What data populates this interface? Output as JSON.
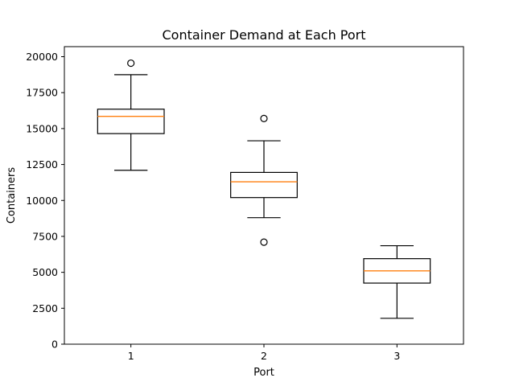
{
  "chart_data": {
    "type": "box",
    "title": "Container Demand at Each Port",
    "xlabel": "Port",
    "ylabel": "Containers",
    "categories": [
      "1",
      "2",
      "3"
    ],
    "ylim": [
      0,
      20700
    ],
    "yticks": [
      0,
      2500,
      5000,
      7500,
      10000,
      12500,
      15000,
      17500,
      20000
    ],
    "grid": false,
    "colors": {
      "box": "#000000",
      "median": "#ff7f0e",
      "flier": "#000000"
    },
    "boxes": [
      {
        "category": "1",
        "whisker_low": 12100,
        "q1": 14650,
        "median": 15850,
        "q3": 16350,
        "whisker_high": 18750,
        "fliers": [
          19550
        ]
      },
      {
        "category": "2",
        "whisker_low": 8800,
        "q1": 10200,
        "median": 11300,
        "q3": 11950,
        "whisker_high": 14150,
        "fliers": [
          15700,
          7100
        ]
      },
      {
        "category": "3",
        "whisker_low": 1800,
        "q1": 4250,
        "median": 5100,
        "q3": 5950,
        "whisker_high": 6850,
        "fliers": []
      }
    ]
  }
}
